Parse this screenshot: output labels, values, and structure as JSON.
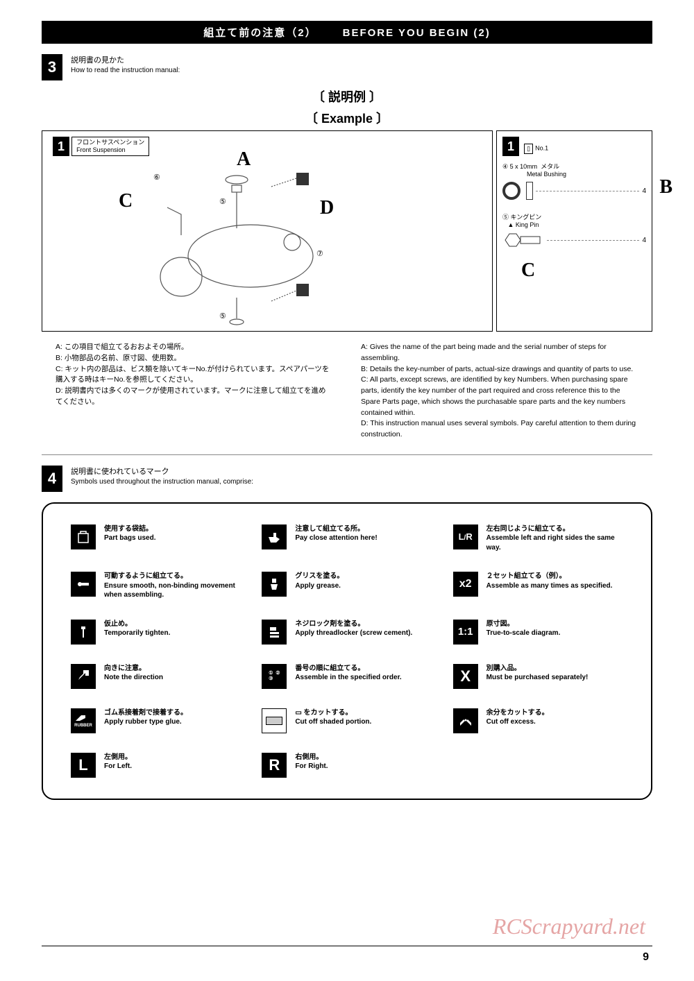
{
  "header": {
    "jp": "組立て前の注意（2）",
    "en": "BEFORE YOU BEGIN (2)"
  },
  "step3": {
    "num": "3",
    "jp": "説明書の見かた",
    "en": "How to read the instruction manual:"
  },
  "example_title": {
    "jp": "〔 説明例 〕",
    "en": "〔 Example 〕"
  },
  "diagram_main": {
    "step_num": "1",
    "label_jp": "フロントサスペンション",
    "label_en": "Front Suspension",
    "letters": {
      "A": "A",
      "C": "C",
      "D": "D"
    },
    "nums": {
      "n5": "⑤",
      "n6": "⑥",
      "n7": "⑦",
      "n5b": "⑤"
    }
  },
  "diagram_side": {
    "step_num": "1",
    "bag_label": "No.1",
    "part4": {
      "num": "④",
      "spec": "5 x 10mm",
      "jp": "メタル",
      "en": "Metal Bushing",
      "qty": "4"
    },
    "part5": {
      "num": "⑤",
      "jp": "キングピン",
      "en": "King Pin",
      "qty": "4"
    },
    "letters": {
      "B": "B",
      "C": "C"
    }
  },
  "legend_jp": {
    "A": "A: この項目で組立てるおおよその場所。",
    "B": "B: 小物部品の名前、原寸図、使用数。",
    "C": "C: キット内の部品は、ビス類を除いてキーNo.が付けられています。スペアパーツを購入する時はキーNo.を参照してください。",
    "D": "D: 説明書内では多くのマークが使用されています。マークに注意して組立てを進めてください。"
  },
  "legend_en": {
    "A": "A: Gives the name of the part being made and the serial number of steps for assembling.",
    "B": "B: Details the key-number of parts, actual-size drawings and quantity of parts to use.",
    "C": "C: All parts, except screws, are identified by key Numbers.  When purchasing spare parts, identify the key number of the part required and cross reference this to the Spare Parts page, which shows the purchasable spare parts and the key numbers contained within.",
    "D": "D: This instruction manual uses several symbols.  Pay careful attention to them during construction."
  },
  "step4": {
    "num": "4",
    "jp": "説明書に使われているマーク",
    "en": "Symbols used throughout the instruction manual, comprise:"
  },
  "symbols": [
    {
      "icon": "bag",
      "jp": "使用する袋詰。",
      "en": "Part bags used."
    },
    {
      "icon": "hand",
      "jp": "注意して組立てる所。",
      "en": "Pay close attention here!"
    },
    {
      "icon": "LR",
      "jp": "左右同じように組立てる。",
      "en": "Assemble left and right sides the same way."
    },
    {
      "icon": "wrench",
      "jp": "可動するように組立てる。",
      "en": "Ensure smooth, non-binding movement when assembling."
    },
    {
      "icon": "grease",
      "jp": "グリスを塗る。",
      "en": "Apply grease."
    },
    {
      "icon": "x2",
      "jp": "２セット組立てる（例）。",
      "en": "Assemble as many times as specified."
    },
    {
      "icon": "screw",
      "jp": "仮止め。",
      "en": "Temporarily tighten."
    },
    {
      "icon": "lock",
      "jp": "ネジロック剤を塗る。",
      "en": "Apply threadlocker (screw cement)."
    },
    {
      "icon": "1:1",
      "jp": "原寸図。",
      "en": "True-to-scale diagram."
    },
    {
      "icon": "arrow",
      "jp": "向きに注意。",
      "en": "Note the direction"
    },
    {
      "icon": "order",
      "jp": "番号の順に組立てる。",
      "en": "Assemble in the specified order."
    },
    {
      "icon": "X",
      "jp": "別購入品。",
      "en": "Must be purchased separately!"
    },
    {
      "icon": "rubber",
      "jp": "ゴム系接着剤で接着する。",
      "en": "Apply rubber type glue."
    },
    {
      "icon": "cut",
      "jp": "▭ をカットする。",
      "en": "Cut off shaded portion."
    },
    {
      "icon": "nippers",
      "jp": "余分をカットする。",
      "en": "Cut off excess."
    },
    {
      "icon": "L",
      "jp": "左側用。",
      "en": "For Left."
    },
    {
      "icon": "R",
      "jp": "右側用。",
      "en": "For Right."
    }
  ],
  "watermark": "RCScrapyard.net",
  "page_number": "9"
}
